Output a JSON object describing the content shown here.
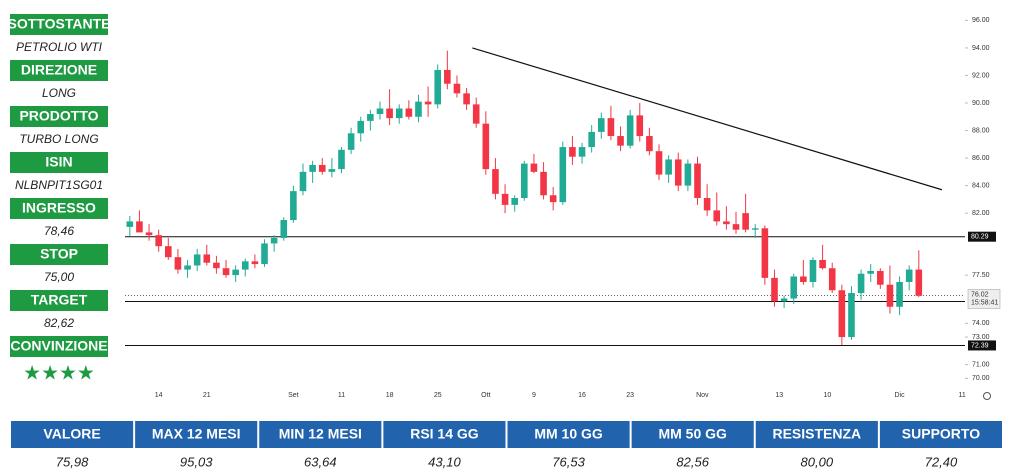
{
  "sidebar": [
    {
      "label": "SOTTOSTANTE",
      "value": "PETROLIO WTI"
    },
    {
      "label": "DIREZIONE",
      "value": "LONG"
    },
    {
      "label": "PRODOTTO",
      "value": "TURBO LONG"
    },
    {
      "label": "ISIN",
      "value": "NLBNPIT1SG01"
    },
    {
      "label": "INGRESSO",
      "value": "78,46"
    },
    {
      "label": "STOP",
      "value": "75,00"
    },
    {
      "label": "TARGET",
      "value": "82,62"
    },
    {
      "label": "CONVINZIONE",
      "value": "★★★★"
    }
  ],
  "chart_data": {
    "type": "candlestick",
    "up_color": "#22ab94",
    "down_color": "#f23645",
    "open": [
      81.0,
      81.4,
      80.6,
      80.4,
      79.6,
      78.8,
      77.9,
      78.2,
      79.0,
      78.4,
      78.0,
      77.5,
      77.9,
      78.5,
      78.3,
      79.8,
      80.2,
      81.5,
      83.6,
      85.0,
      85.5,
      85.0,
      85.2,
      86.6,
      87.8,
      88.7,
      89.2,
      89.6,
      88.9,
      89.6,
      89.0,
      90.1,
      89.9,
      92.4,
      91.4,
      90.7,
      89.9,
      88.5,
      85.2,
      83.4,
      82.6,
      83.1,
      85.6,
      85.0,
      83.3,
      82.8,
      86.8,
      86.1,
      86.8,
      87.9,
      88.9,
      87.6,
      86.9,
      89.1,
      87.6,
      86.5,
      84.8,
      85.9,
      84.0,
      85.6,
      83.1,
      82.2,
      81.4,
      81.2,
      82.0,
      80.8,
      80.9,
      77.3,
      75.6,
      75.8,
      77.4,
      77.0,
      78.6,
      78.0,
      76.4,
      73.0,
      76.2,
      77.6,
      77.8,
      76.8,
      75.2,
      77.0,
      77.9
    ],
    "high": [
      81.8,
      82.2,
      81.2,
      80.8,
      80.2,
      79.4,
      78.6,
      79.4,
      79.7,
      78.9,
      78.6,
      78.2,
      78.7,
      79.0,
      80.1,
      80.4,
      81.7,
      84.0,
      85.6,
      85.8,
      86.0,
      86.0,
      86.8,
      88.2,
      89.0,
      89.5,
      90.1,
      91.0,
      89.9,
      90.2,
      90.6,
      91.2,
      92.8,
      93.8,
      92.0,
      91.1,
      90.4,
      89.4,
      86.0,
      84.1,
      83.3,
      85.8,
      86.3,
      85.7,
      83.9,
      87.2,
      87.6,
      87.1,
      88.4,
      89.3,
      89.8,
      88.3,
      89.5,
      90.0,
      88.2,
      87.0,
      86.2,
      86.4,
      85.9,
      86.1,
      84.1,
      83.5,
      82.5,
      82.1,
      83.4,
      81.2,
      81.1,
      77.9,
      76.0,
      77.6,
      78.6,
      78.8,
      79.7,
      78.4,
      76.8,
      76.7,
      77.9,
      78.3,
      78.0,
      78.2,
      77.4,
      78.2,
      79.3
    ],
    "low": [
      80.3,
      80.8,
      80.0,
      79.2,
      78.6,
      77.6,
      77.3,
      77.8,
      78.2,
      77.6,
      77.3,
      77.0,
      77.4,
      78.0,
      78.1,
      79.2,
      80.0,
      81.3,
      83.3,
      84.2,
      84.8,
      84.6,
      84.9,
      86.3,
      87.2,
      88.0,
      88.8,
      88.4,
      88.5,
      88.8,
      88.6,
      89.0,
      89.6,
      91.0,
      90.4,
      89.5,
      88.2,
      84.8,
      83.0,
      82.0,
      82.1,
      82.9,
      84.9,
      83.0,
      82.2,
      82.6,
      85.5,
      85.6,
      86.4,
      87.4,
      87.3,
      86.5,
      86.7,
      87.2,
      86.2,
      84.4,
      84.2,
      83.6,
      83.6,
      82.6,
      81.8,
      81.1,
      80.8,
      80.5,
      80.6,
      80.2,
      76.8,
      75.2,
      75.1,
      75.4,
      76.8,
      76.6,
      77.9,
      76.2,
      72.4,
      72.8,
      75.7,
      77.0,
      76.5,
      74.7,
      74.6,
      76.4,
      75.9
    ],
    "close": [
      81.4,
      80.6,
      80.4,
      79.6,
      78.8,
      77.9,
      78.2,
      79.0,
      78.4,
      78.0,
      77.5,
      77.9,
      78.5,
      78.3,
      79.8,
      80.2,
      81.5,
      83.6,
      85.0,
      85.5,
      85.0,
      85.2,
      86.6,
      87.8,
      88.7,
      89.2,
      89.6,
      88.9,
      89.6,
      89.0,
      90.1,
      89.9,
      92.4,
      91.4,
      90.7,
      89.9,
      88.5,
      85.2,
      83.4,
      82.6,
      83.1,
      85.6,
      85.0,
      83.3,
      82.8,
      86.8,
      86.1,
      86.8,
      87.9,
      88.9,
      87.6,
      86.9,
      89.1,
      87.6,
      86.5,
      84.8,
      85.9,
      84.0,
      85.6,
      83.1,
      82.2,
      81.4,
      81.2,
      80.8,
      80.8,
      80.9,
      77.3,
      75.6,
      75.8,
      77.4,
      77.0,
      78.6,
      78.0,
      76.4,
      73.0,
      76.2,
      77.6,
      77.8,
      76.8,
      75.2,
      77.0,
      77.9,
      76.0
    ],
    "xlim": [
      -0.5,
      86.8
    ],
    "xticks": [
      {
        "value": 3,
        "label": "14"
      },
      {
        "value": 8,
        "label": "21"
      },
      {
        "value": 17,
        "label": "Set"
      },
      {
        "value": 22,
        "label": "11"
      },
      {
        "value": 27,
        "label": "18"
      },
      {
        "value": 32,
        "label": "25"
      },
      {
        "value": 37,
        "label": "Ott"
      },
      {
        "value": 42,
        "label": "9"
      },
      {
        "value": 47,
        "label": "16"
      },
      {
        "value": 52,
        "label": "23"
      },
      {
        "value": 59.5,
        "label": "Nov"
      },
      {
        "value": 67.5,
        "label": "13"
      },
      {
        "value": 72.5,
        "label": "10"
      },
      {
        "value": 80,
        "label": "Dic"
      },
      {
        "value": 86.5,
        "label": "11"
      }
    ],
    "ylim": [
      69.3,
      96.9
    ],
    "yticks": [
      {
        "value": 96,
        "label": "96.00"
      },
      {
        "value": 94,
        "label": "94.00"
      },
      {
        "value": 92,
        "label": "92.00"
      },
      {
        "value": 90,
        "label": "90.00"
      },
      {
        "value": 88,
        "label": "88.00"
      },
      {
        "value": 86,
        "label": "86.00"
      },
      {
        "value": 84,
        "label": "84.00"
      },
      {
        "value": 82,
        "label": "82.00"
      },
      {
        "value": 77.5,
        "label": "77.50"
      },
      {
        "value": 74,
        "label": "74.00"
      },
      {
        "value": 73,
        "label": "73.00"
      },
      {
        "value": 71,
        "label": "71.00"
      },
      {
        "value": 70,
        "label": "70.00"
      }
    ],
    "levels": [
      80.29,
      75.58,
      72.39
    ],
    "last_price": 76.02,
    "countdown": "15:58:41",
    "trendline": {
      "x": [
        35.6,
        84.4
      ],
      "y": [
        94.0,
        83.7
      ]
    }
  },
  "table": {
    "headers": [
      "VALORE",
      "MAX 12 MESI",
      "MIN 12 MESI",
      "RSI 14 GG",
      "MM 10 GG",
      "MM 50 GG",
      "RESISTENZA",
      "SUPPORTO"
    ],
    "values": [
      "75,98",
      "95,03",
      "63,64",
      "43,10",
      "76,53",
      "82,56",
      "80,00",
      "72,40"
    ]
  }
}
